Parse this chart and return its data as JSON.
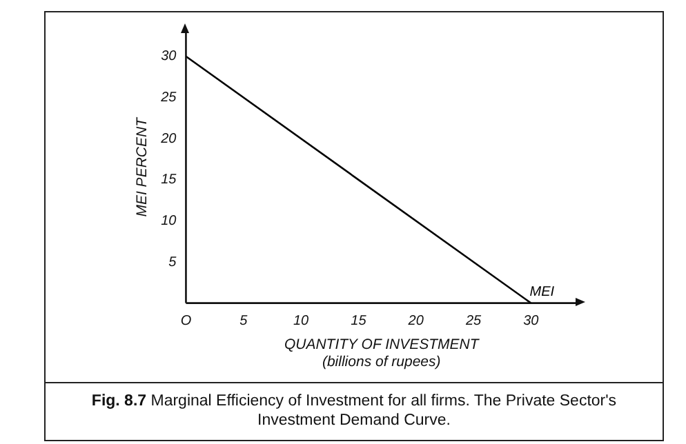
{
  "chart_data": {
    "type": "line",
    "xlabel": "QUANTITY OF INVESTMENT\n(billions of rupees)",
    "ylabel": "MEI PERCENT",
    "x": [
      0,
      30
    ],
    "series": [
      {
        "name": "MEI",
        "color": "#000000",
        "values": [
          30,
          0
        ]
      }
    ],
    "xlim": [
      0,
      34
    ],
    "ylim": [
      0,
      33
    ],
    "xticks": [
      {
        "value": 0,
        "label": "O"
      },
      5,
      10,
      15,
      20,
      25,
      30
    ],
    "yticks": [
      5,
      10,
      15,
      20,
      25,
      30
    ],
    "grid": false,
    "legend": false,
    "marker": "none",
    "line_style": "solid",
    "annotations": [
      "Fig. 8.7 Marginal Efficiency of Investment for all firms. The Private Sector's Investment Demand Curve."
    ]
  }
}
